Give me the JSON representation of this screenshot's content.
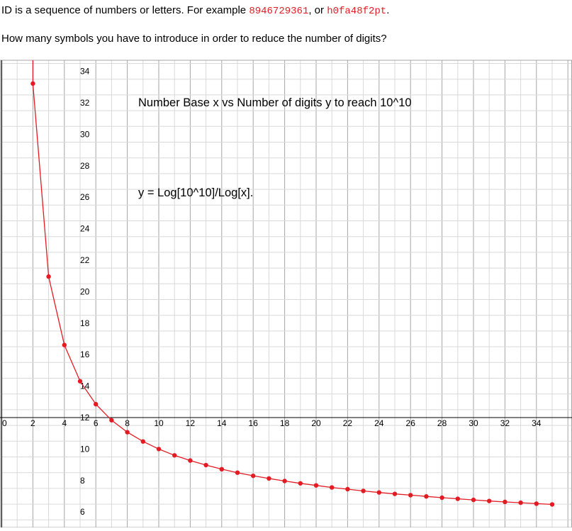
{
  "intro": {
    "line1_prefix": "ID is a sequence of numbers or letters. For example ",
    "example_numeric": "8946729361",
    "line1_middle": ", or ",
    "example_alnum": "h0fa48f2pt",
    "line1_suffix": ".",
    "line2": "How many symbols you have to introduce in order to reduce the number of digits?"
  },
  "colors": {
    "series": "#e31b23",
    "grid_major": "#a6a6a6",
    "grid_minor": "#d9d9d9",
    "axis": "#000000",
    "code_text": "#e31b23"
  },
  "chart_data": {
    "type": "line",
    "title": "Number Base x vs Number of digits y to reach 10^10",
    "annotation": "y = Log[10^10]/Log[x].",
    "xlim": [
      0,
      35
    ],
    "ylim": [
      5.5,
      35
    ],
    "x_ticks": [
      "0",
      "2",
      "4",
      "6",
      "8",
      "10",
      "12",
      "14",
      "16",
      "18",
      "20",
      "22",
      "24",
      "26",
      "28",
      "30",
      "32",
      "34"
    ],
    "y_ticks": [
      "6",
      "8",
      "10",
      "12",
      "14",
      "16",
      "18",
      "20",
      "22",
      "24",
      "26",
      "28",
      "30",
      "32",
      "34"
    ],
    "x_axis_at_y": 12,
    "y_axis_at_x": 0,
    "grid": true,
    "series": [
      {
        "x": [
          2,
          3,
          4,
          5,
          6,
          7,
          8,
          9,
          10,
          11,
          12,
          13,
          14,
          15,
          16,
          17,
          18,
          19,
          20,
          21,
          22,
          23,
          24,
          25,
          26,
          27,
          28,
          29,
          30,
          31,
          32,
          33,
          34,
          35
        ],
        "y": [
          33.22,
          20.96,
          16.61,
          14.31,
          12.85,
          11.83,
          11.07,
          10.48,
          10.0,
          9.6,
          9.27,
          8.98,
          8.72,
          8.5,
          8.3,
          8.13,
          7.97,
          7.82,
          7.69,
          7.56,
          7.45,
          7.34,
          7.24,
          7.15,
          7.07,
          6.99,
          6.91,
          6.84,
          6.77,
          6.7,
          6.64,
          6.59,
          6.53,
          6.48
        ]
      }
    ]
  }
}
